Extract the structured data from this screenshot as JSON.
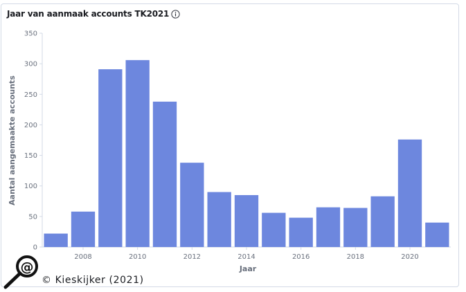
{
  "panel": {
    "title": "Jaar van aanmaak accounts TK2021",
    "credit": "© Kieskijker (2021)"
  },
  "chart_data": {
    "type": "bar",
    "title": "Jaar van aanmaak accounts TK2021",
    "xlabel": "Jaar",
    "ylabel": "Aantal aangemaakte accounts",
    "x": [
      2007,
      2008,
      2009,
      2010,
      2011,
      2012,
      2013,
      2014,
      2015,
      2016,
      2017,
      2018,
      2019,
      2020,
      2021
    ],
    "values": [
      22,
      58,
      291,
      306,
      238,
      138,
      90,
      85,
      56,
      48,
      65,
      64,
      83,
      176,
      40
    ],
    "xticks": [
      2008,
      2010,
      2012,
      2014,
      2016,
      2018,
      2020
    ],
    "yticks": [
      0,
      50,
      100,
      150,
      200,
      250,
      300,
      350
    ],
    "ylim": [
      0,
      350
    ],
    "xlim": [
      2006.5,
      2021.5
    ],
    "grid": false,
    "bar_color": "#6d87de"
  }
}
